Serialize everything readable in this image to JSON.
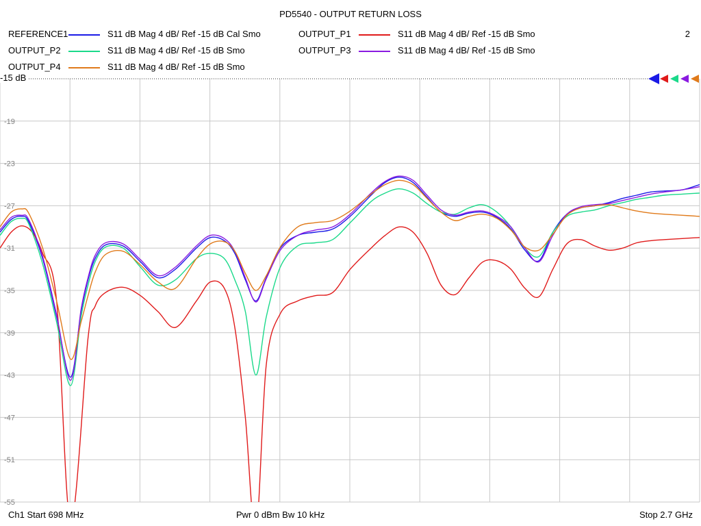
{
  "chart_data": {
    "type": "line",
    "title": "PD5540 - OUTPUT RETURN LOSS",
    "reference_label": "-15 dB",
    "ylim": [
      -55,
      -15
    ],
    "yticks": [
      "-19",
      "-23",
      "-27",
      "-31",
      "-35",
      "-39",
      "-43",
      "-47",
      "-51",
      "-55"
    ],
    "xlim_ghz": [
      0.698,
      2.7
    ],
    "grid": true,
    "channel_number": "2",
    "footer": {
      "start": "Ch1  Start  698 MHz",
      "power": "Pwr  0 dBm  Bw  10 kHz",
      "stop": "Stop  2.7 GHz"
    },
    "series": [
      {
        "name": "REFERENCE1",
        "desc": "S11  dB Mag  4 dB/ Ref -15 dB  Cal Smo",
        "color": "#1a1ae6",
        "x": [
          0.698,
          0.73,
          0.76,
          0.78,
          0.82,
          0.86,
          0.9,
          0.93,
          0.95,
          0.97,
          1.0,
          1.05,
          1.1,
          1.15,
          1.2,
          1.26,
          1.3,
          1.34,
          1.37,
          1.4,
          1.43,
          1.46,
          1.5,
          1.55,
          1.6,
          1.65,
          1.7,
          1.76,
          1.8,
          1.84,
          1.88,
          1.92,
          1.96,
          2.0,
          2.04,
          2.08,
          2.12,
          2.16,
          2.2,
          2.24,
          2.28,
          2.32,
          2.36,
          2.4,
          2.44,
          2.48,
          2.52,
          2.56,
          2.6,
          2.65,
          2.7
        ],
        "y": [
          -29.5,
          -28.3,
          -28.0,
          -28.5,
          -32.0,
          -37.5,
          -43.2,
          -37.0,
          -34.0,
          -32.0,
          -30.7,
          -30.8,
          -32.3,
          -33.8,
          -33.0,
          -31.0,
          -30.0,
          -30.3,
          -31.5,
          -34.0,
          -36.0,
          -33.8,
          -31.0,
          -29.8,
          -29.5,
          -29.2,
          -28.0,
          -26.0,
          -24.8,
          -24.3,
          -24.8,
          -26.2,
          -27.6,
          -28.0,
          -27.7,
          -27.6,
          -28.1,
          -29.2,
          -31.2,
          -32.2,
          -29.5,
          -27.8,
          -27.2,
          -27.0,
          -26.7,
          -26.3,
          -26.0,
          -25.7,
          -25.6,
          -25.5,
          -25.0
        ]
      },
      {
        "name": "OUTPUT_P1",
        "desc": "S11  dB Mag  4 dB/ Ref -15 dB  Smo",
        "color": "#e01a1a",
        "x": [
          0.698,
          0.73,
          0.76,
          0.79,
          0.82,
          0.86,
          0.9,
          0.95,
          0.97,
          1.0,
          1.05,
          1.1,
          1.15,
          1.2,
          1.26,
          1.3,
          1.34,
          1.37,
          1.4,
          1.43,
          1.46,
          1.5,
          1.55,
          1.6,
          1.65,
          1.7,
          1.76,
          1.8,
          1.84,
          1.88,
          1.92,
          1.96,
          2.0,
          2.04,
          2.08,
          2.12,
          2.16,
          2.2,
          2.24,
          2.28,
          2.32,
          2.36,
          2.4,
          2.44,
          2.48,
          2.52,
          2.56,
          2.6,
          2.65,
          2.7
        ],
        "y": [
          -31.0,
          -29.5,
          -28.9,
          -29.5,
          -31.5,
          -36.0,
          -57.0,
          -39.5,
          -36.5,
          -35.2,
          -34.7,
          -35.5,
          -37.0,
          -38.5,
          -36.0,
          -34.2,
          -34.8,
          -38.5,
          -47.0,
          -58.0,
          -42.0,
          -37.2,
          -36.0,
          -35.5,
          -35.2,
          -33.0,
          -31.0,
          -29.8,
          -29.0,
          -29.5,
          -31.5,
          -34.5,
          -35.4,
          -33.8,
          -32.3,
          -32.2,
          -33.0,
          -34.8,
          -35.6,
          -33.0,
          -30.6,
          -30.2,
          -30.8,
          -31.2,
          -31.0,
          -30.5,
          -30.3,
          -30.2,
          -30.1,
          -30.0
        ]
      },
      {
        "name": "OUTPUT_P2",
        "desc": "S11  dB Mag  4 dB/ Ref -15 dB  Smo",
        "color": "#1ad98a",
        "x": [
          0.698,
          0.73,
          0.76,
          0.78,
          0.82,
          0.86,
          0.9,
          0.93,
          0.95,
          0.97,
          1.0,
          1.05,
          1.1,
          1.15,
          1.2,
          1.26,
          1.3,
          1.34,
          1.37,
          1.4,
          1.43,
          1.46,
          1.5,
          1.55,
          1.6,
          1.65,
          1.7,
          1.76,
          1.8,
          1.84,
          1.88,
          1.92,
          1.96,
          2.0,
          2.04,
          2.08,
          2.12,
          2.16,
          2.2,
          2.24,
          2.28,
          2.32,
          2.36,
          2.4,
          2.44,
          2.48,
          2.52,
          2.56,
          2.6,
          2.65,
          2.7
        ],
        "y": [
          -29.8,
          -28.5,
          -28.2,
          -28.7,
          -32.5,
          -38.0,
          -44.0,
          -37.5,
          -34.5,
          -32.3,
          -30.9,
          -31.0,
          -32.8,
          -34.5,
          -34.0,
          -32.0,
          -31.5,
          -32.0,
          -34.0,
          -37.0,
          -43.0,
          -37.5,
          -32.8,
          -30.8,
          -30.5,
          -30.2,
          -28.6,
          -26.6,
          -25.8,
          -25.4,
          -25.8,
          -26.8,
          -27.6,
          -27.8,
          -27.2,
          -26.9,
          -27.6,
          -29.0,
          -31.0,
          -31.8,
          -29.5,
          -28.0,
          -27.6,
          -27.4,
          -27.0,
          -26.7,
          -26.4,
          -26.2,
          -26.0,
          -25.9,
          -25.8
        ]
      },
      {
        "name": "OUTPUT_P3",
        "desc": "S11  dB Mag  4 dB/ Ref -15 dB  Smo",
        "color": "#8a1ae0",
        "x": [
          0.698,
          0.73,
          0.76,
          0.78,
          0.82,
          0.86,
          0.9,
          0.93,
          0.95,
          0.97,
          1.0,
          1.05,
          1.1,
          1.15,
          1.2,
          1.26,
          1.3,
          1.34,
          1.37,
          1.4,
          1.43,
          1.46,
          1.5,
          1.55,
          1.6,
          1.65,
          1.7,
          1.76,
          1.8,
          1.84,
          1.88,
          1.92,
          1.96,
          2.0,
          2.04,
          2.08,
          2.12,
          2.16,
          2.2,
          2.24,
          2.28,
          2.32,
          2.36,
          2.4,
          2.44,
          2.48,
          2.52,
          2.56,
          2.6,
          2.65,
          2.7
        ],
        "y": [
          -29.3,
          -28.1,
          -27.9,
          -28.3,
          -31.8,
          -37.3,
          -43.5,
          -36.8,
          -33.8,
          -31.7,
          -30.5,
          -30.6,
          -32.1,
          -33.6,
          -32.8,
          -30.8,
          -29.8,
          -30.1,
          -31.3,
          -33.8,
          -36.1,
          -33.9,
          -31.2,
          -29.8,
          -29.3,
          -29.0,
          -27.8,
          -25.8,
          -24.7,
          -24.2,
          -24.6,
          -26.0,
          -27.4,
          -27.9,
          -27.6,
          -27.5,
          -28.0,
          -29.0,
          -31.0,
          -32.3,
          -29.8,
          -27.8,
          -27.1,
          -26.9,
          -26.8,
          -26.5,
          -26.2,
          -25.9,
          -25.7,
          -25.5,
          -25.2
        ]
      },
      {
        "name": "OUTPUT_P4",
        "desc": "S11  dB Mag  4 dB/ Ref -15 dB  Smo",
        "color": "#e07a1a",
        "x": [
          0.698,
          0.73,
          0.76,
          0.78,
          0.82,
          0.86,
          0.9,
          0.93,
          0.95,
          0.97,
          1.0,
          1.05,
          1.1,
          1.15,
          1.2,
          1.26,
          1.3,
          1.34,
          1.37,
          1.4,
          1.43,
          1.46,
          1.5,
          1.55,
          1.6,
          1.65,
          1.7,
          1.76,
          1.8,
          1.84,
          1.88,
          1.92,
          1.96,
          2.0,
          2.04,
          2.08,
          2.12,
          2.16,
          2.2,
          2.24,
          2.28,
          2.32,
          2.36,
          2.4,
          2.44,
          2.48,
          2.52,
          2.56,
          2.6,
          2.65,
          2.7
        ],
        "y": [
          -29.0,
          -27.6,
          -27.3,
          -27.7,
          -31.0,
          -36.0,
          -41.5,
          -38.0,
          -35.5,
          -33.3,
          -31.6,
          -31.3,
          -32.6,
          -34.2,
          -34.8,
          -32.0,
          -30.6,
          -30.4,
          -31.3,
          -33.4,
          -35.0,
          -33.6,
          -30.9,
          -29.0,
          -28.6,
          -28.4,
          -27.5,
          -25.9,
          -25.0,
          -24.6,
          -25.0,
          -26.3,
          -27.6,
          -28.4,
          -28.0,
          -27.8,
          -28.2,
          -29.3,
          -30.9,
          -31.2,
          -29.7,
          -27.9,
          -27.2,
          -27.0,
          -26.9,
          -27.2,
          -27.5,
          -27.7,
          -27.8,
          -27.9,
          -28.0
        ]
      }
    ]
  }
}
